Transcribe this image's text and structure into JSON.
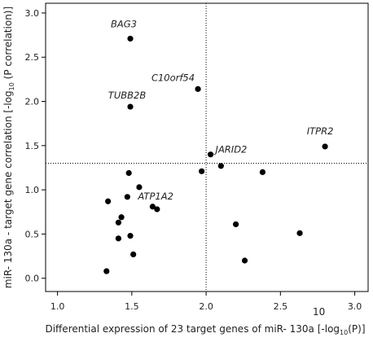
{
  "chart_data": {
    "type": "scatter",
    "x_label": {
      "before": "Differential expression of 23 target genes of miR- 130a [-log",
      "sub": "10",
      "after": "(P)]"
    },
    "y_label": {
      "before": "miR- 130a - target gene correlation [-log",
      "sub": "10",
      "after": " (P correlation)]"
    },
    "footnote": "10",
    "x": [
      1.49,
      1.945,
      1.49,
      2.8,
      2.03,
      2.1,
      1.97,
      2.38,
      1.48,
      1.55,
      1.34,
      1.47,
      1.43,
      1.41,
      1.64,
      1.67,
      1.49,
      1.41,
      2.2,
      2.63,
      1.51,
      2.26,
      1.33
    ],
    "y": [
      2.71,
      2.14,
      1.94,
      1.49,
      1.4,
      1.27,
      1.21,
      1.2,
      1.19,
      1.03,
      0.87,
      0.92,
      0.69,
      0.63,
      0.81,
      0.78,
      0.48,
      0.45,
      0.61,
      0.51,
      0.27,
      0.2,
      0.08
    ],
    "labels": [
      "BAG3",
      "C10orf54",
      "TUBB2B",
      "ITPR2",
      "JARID2",
      null,
      null,
      null,
      null,
      null,
      null,
      null,
      null,
      null,
      "ATP1A2",
      null,
      null,
      null,
      null,
      null,
      null,
      null,
      null
    ],
    "color": "#000000",
    "ref_lines": {
      "x": 2.0,
      "y": 1.3
    },
    "xlim": [
      0.92,
      3.09
    ],
    "ylim": [
      -0.15,
      3.11
    ],
    "xticks": [
      {
        "value": 1,
        "label": "1.0"
      },
      1.5,
      {
        "value": 2,
        "label": "2.0"
      },
      2.5,
      {
        "value": 3,
        "label": "3.0"
      }
    ],
    "yticks": [
      {
        "value": 0,
        "label": "0.0"
      },
      0.5,
      {
        "value": 1,
        "label": "1.0"
      },
      1.5,
      {
        "value": 2,
        "label": "2.0"
      },
      2.5,
      {
        "value": 3,
        "label": "3.0"
      }
    ]
  }
}
